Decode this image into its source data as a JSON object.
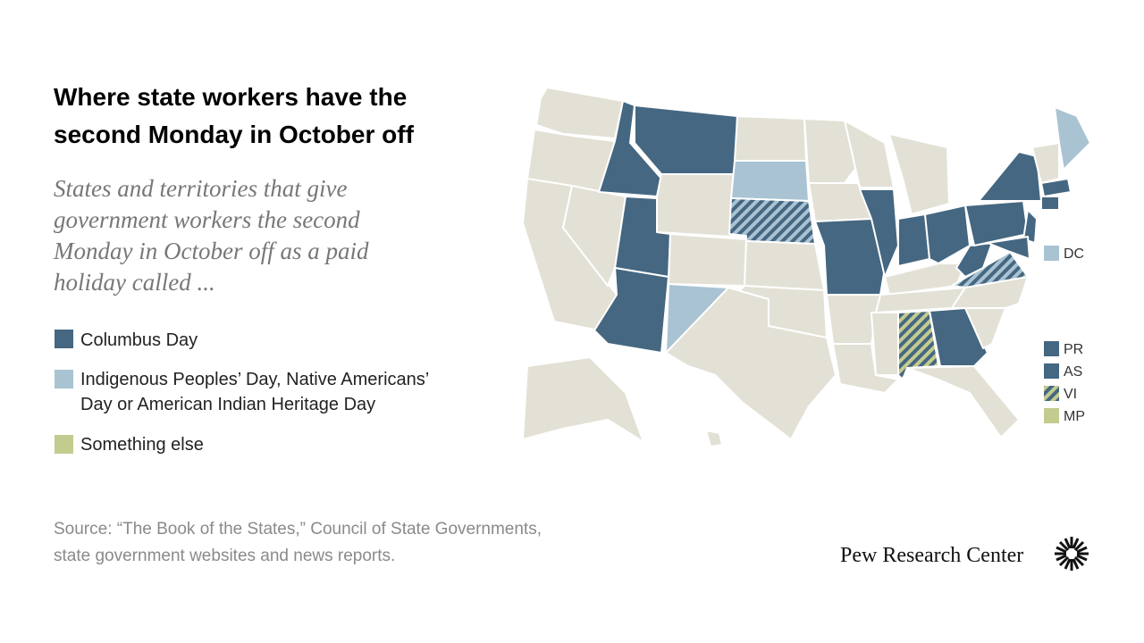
{
  "header": {
    "title": [
      "Where state workers have the",
      "second Monday in October off"
    ],
    "subtitle": [
      "States and territories that give",
      "government workers the second",
      "Monday in October off as a paid",
      "holiday called ..."
    ]
  },
  "legend": {
    "items": [
      {
        "label": [
          "Columbus Day"
        ]
      },
      {
        "label": [
          "Indigenous Peoples’ Day, Native Americans’",
          "Day or American Indian Heritage Day"
        ]
      },
      {
        "label": [
          "Something else"
        ]
      }
    ]
  },
  "territories": [
    "DC",
    "PR",
    "AS",
    "VI",
    "MP"
  ],
  "source": [
    "Source: “The Book of the States,” Council of State Governments,",
    "state government websites and news reports."
  ],
  "footer": {
    "brand": "Pew Research Center"
  }
}
